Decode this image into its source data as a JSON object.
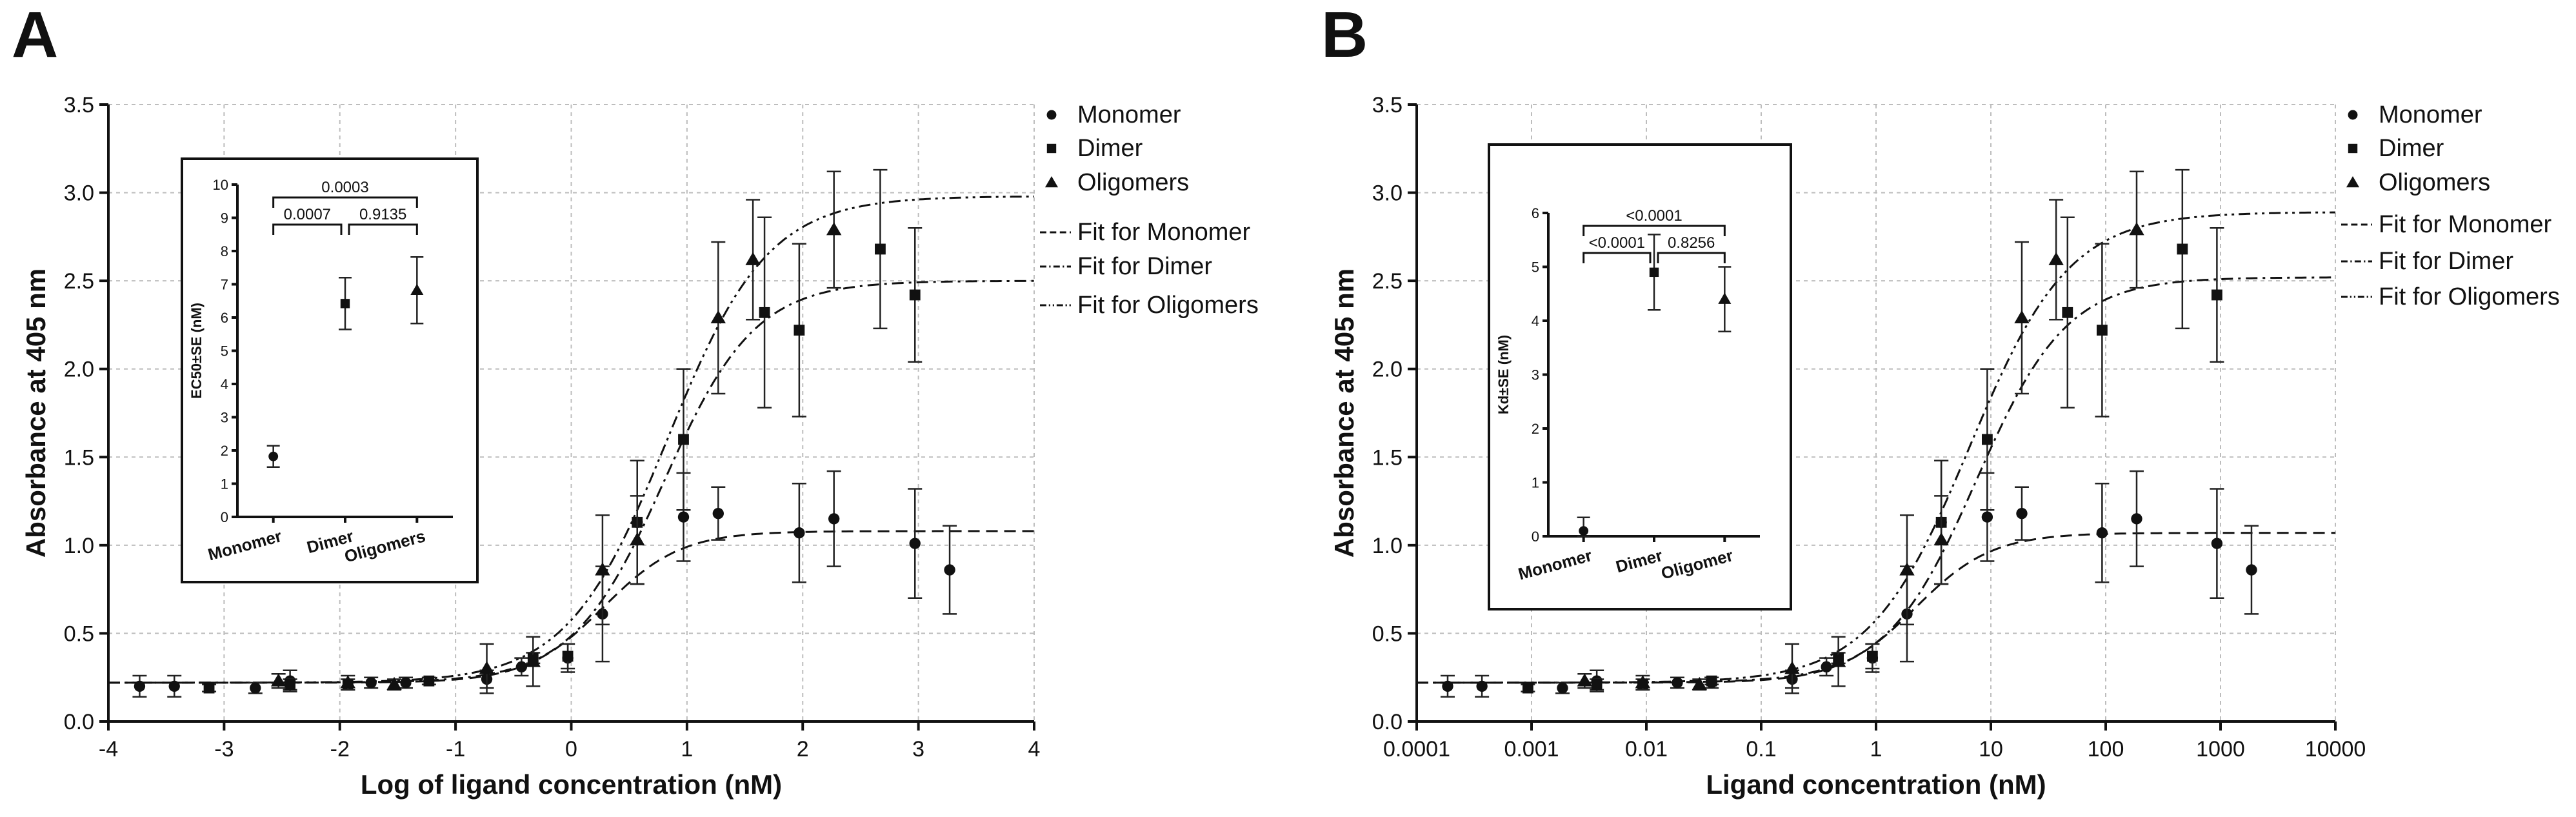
{
  "chart_data": [
    {
      "panel": "A",
      "type": "scatter",
      "xscale": "linear",
      "xlabel": "Log of ligand concentration (nM)",
      "ylabel": "Absorbance at 405 nm",
      "xlim": [
        -4,
        4
      ],
      "ylim": [
        0,
        3.5
      ],
      "xticks": [
        -4,
        -3,
        -2,
        -1,
        0,
        1,
        2,
        3,
        4
      ],
      "xtick_labels": [
        "-4",
        "-3",
        "-2",
        "-1",
        "0",
        "1",
        "2",
        "3",
        "4"
      ],
      "yticks": [
        0,
        0.5,
        1.0,
        1.5,
        2.0,
        2.5,
        3.0,
        3.5
      ],
      "ytick_labels": [
        "0.0",
        "0.5",
        "1.0",
        "1.5",
        "2.0",
        "2.5",
        "3.0",
        "3.5"
      ],
      "grid": true,
      "legend_position": "right",
      "series": [
        {
          "name": "Monomer",
          "marker": "circle",
          "points": [
            [
              -3.73,
              0.2,
              0.06
            ],
            [
              -3.43,
              0.2,
              0.06
            ],
            [
              -2.73,
              0.19,
              0.03
            ],
            [
              -2.43,
              0.23,
              0.06
            ],
            [
              -1.73,
              0.22,
              0.03
            ],
            [
              -1.43,
              0.22,
              0.03
            ],
            [
              -0.73,
              0.24,
              0.05
            ],
            [
              -0.43,
              0.31,
              0.05
            ],
            [
              -0.03,
              0.36,
              0.08
            ],
            [
              0.27,
              0.61,
              0.27
            ],
            [
              0.57,
              1.13,
              0.35
            ],
            [
              0.97,
              1.16,
              0.25
            ],
            [
              1.27,
              1.18,
              0.15
            ],
            [
              1.97,
              1.07,
              0.28
            ],
            [
              2.27,
              1.15,
              0.27
            ],
            [
              2.97,
              1.01,
              0.31
            ],
            [
              3.27,
              0.86,
              0.25
            ]
          ]
        },
        {
          "name": "Dimer",
          "marker": "square",
          "points": [
            [
              -3.13,
              0.19,
              0.02
            ],
            [
              -2.43,
              0.21,
              0.03
            ],
            [
              -1.93,
              0.21,
              0.03
            ],
            [
              -1.23,
              0.23,
              0.02
            ],
            [
              -0.33,
              0.36,
              0.03
            ],
            [
              -0.03,
              0.37,
              0.07
            ],
            [
              0.57,
              1.13,
              0.35
            ],
            [
              0.97,
              1.6,
              0.4
            ],
            [
              1.67,
              2.32,
              0.54
            ],
            [
              1.97,
              2.22,
              0.49
            ],
            [
              2.67,
              2.68,
              0.45
            ],
            [
              2.97,
              2.42,
              0.38
            ]
          ]
        },
        {
          "name": "Oligomers",
          "marker": "triangle",
          "points": [
            [
              -2.53,
              0.23,
              0.04
            ],
            [
              -1.93,
              0.22,
              0.04
            ],
            [
              -1.53,
              0.21,
              0.03
            ],
            [
              -0.73,
              0.3,
              0.14
            ],
            [
              -0.33,
              0.34,
              0.14
            ],
            [
              0.27,
              0.86,
              0.31
            ],
            [
              0.57,
              1.03,
              0.25
            ],
            [
              1.27,
              2.29,
              0.43
            ],
            [
              1.57,
              2.62,
              0.34
            ],
            [
              2.27,
              2.79,
              0.33
            ]
          ]
        }
      ],
      "fits": [
        {
          "name": "Fit for Monomer",
          "dash": "long",
          "bottom": 0.22,
          "top": 1.08,
          "logEC50": 0.28,
          "hill": 1.3
        },
        {
          "name": "Fit for Dimer",
          "dash": "dashdot",
          "bottom": 0.22,
          "top": 2.5,
          "logEC50": 0.8,
          "hill": 1.1
        },
        {
          "name": "Fit for Oligomers",
          "dash": "dashdotdot",
          "bottom": 0.22,
          "top": 2.98,
          "logEC50": 0.83,
          "hill": 1.0
        }
      ],
      "inset": {
        "ylabel": "EC50±SE (nM)",
        "ylim": [
          0,
          10
        ],
        "yticks": [
          0,
          1,
          2,
          3,
          4,
          5,
          6,
          7,
          8,
          9,
          10
        ],
        "ytick_labels": [
          "0",
          "1",
          "2",
          "3",
          "4",
          "5",
          "6",
          "7",
          "8",
          "9",
          "10"
        ],
        "categories": [
          "Monomer",
          "Dimer",
          "Oligomers"
        ],
        "values": [
          1.82,
          6.42,
          6.82
        ],
        "errors": [
          0.32,
          0.78,
          1.0
        ],
        "markers": [
          "circle",
          "square",
          "triangle"
        ],
        "comparisons": [
          {
            "from": 0,
            "to": 1,
            "label": "0.0007"
          },
          {
            "from": 1,
            "to": 2,
            "label": "0.9135"
          },
          {
            "from": 0,
            "to": 2,
            "label": "0.0003"
          }
        ]
      }
    },
    {
      "panel": "B",
      "type": "scatter",
      "xscale": "log",
      "xlabel": "Ligand concentration (nM)",
      "ylabel": "Absorbance at 405 nm",
      "xlim": [
        0.0001,
        10000
      ],
      "ylim": [
        0,
        3.5
      ],
      "xticks": [
        0.0001,
        0.001,
        0.01,
        0.1,
        1,
        10,
        100,
        1000,
        10000
      ],
      "xtick_labels": [
        "0.0001",
        "0.001",
        "0.01",
        "0.1",
        "1",
        "10",
        "100",
        "1000",
        "10000"
      ],
      "yticks": [
        0,
        0.5,
        1.0,
        1.5,
        2.0,
        2.5,
        3.0,
        3.5
      ],
      "ytick_labels": [
        "0.0",
        "0.5",
        "1.0",
        "1.5",
        "2.0",
        "2.5",
        "3.0",
        "3.5"
      ],
      "grid": true,
      "legend_position": "right",
      "series": [
        {
          "name": "Monomer",
          "marker": "circle",
          "points": [
            [
              0.000186,
              0.2,
              0.06
            ],
            [
              0.00037,
              0.2,
              0.06
            ],
            [
              0.00186,
              0.19,
              0.03
            ],
            [
              0.0037,
              0.23,
              0.06
            ],
            [
              0.0186,
              0.22,
              0.03
            ],
            [
              0.037,
              0.22,
              0.03
            ],
            [
              0.186,
              0.24,
              0.05
            ],
            [
              0.37,
              0.31,
              0.05
            ],
            [
              0.93,
              0.36,
              0.08
            ],
            [
              1.86,
              0.61,
              0.27
            ],
            [
              3.7,
              1.13,
              0.35
            ],
            [
              9.3,
              1.16,
              0.25
            ],
            [
              18.6,
              1.18,
              0.15
            ],
            [
              93,
              1.07,
              0.28
            ],
            [
              186,
              1.15,
              0.27
            ],
            [
              930,
              1.01,
              0.31
            ],
            [
              1860,
              0.86,
              0.25
            ]
          ]
        },
        {
          "name": "Dimer",
          "marker": "square",
          "points": [
            [
              0.00093,
              0.19,
              0.02
            ],
            [
              0.0037,
              0.21,
              0.03
            ],
            [
              0.0093,
              0.21,
              0.03
            ],
            [
              0.037,
              0.23,
              0.02
            ],
            [
              0.47,
              0.36,
              0.03
            ],
            [
              0.93,
              0.37,
              0.07
            ],
            [
              3.7,
              1.13,
              0.35
            ],
            [
              9.3,
              1.6,
              0.4
            ],
            [
              46.5,
              2.32,
              0.54
            ],
            [
              93,
              2.22,
              0.49
            ],
            [
              465,
              2.68,
              0.45
            ],
            [
              930,
              2.42,
              0.38
            ]
          ]
        },
        {
          "name": "Oligomers",
          "marker": "triangle",
          "points": [
            [
              0.0029,
              0.23,
              0.04
            ],
            [
              0.0093,
              0.22,
              0.04
            ],
            [
              0.029,
              0.21,
              0.03
            ],
            [
              0.186,
              0.3,
              0.14
            ],
            [
              0.47,
              0.34,
              0.14
            ],
            [
              1.86,
              0.86,
              0.31
            ],
            [
              3.7,
              1.03,
              0.25
            ],
            [
              18.6,
              2.29,
              0.43
            ],
            [
              37,
              2.62,
              0.34
            ],
            [
              186,
              2.79,
              0.33
            ]
          ]
        }
      ],
      "fits": [
        {
          "name": "Fit for Monomer",
          "dash": "long",
          "bottom": 0.22,
          "top": 1.07,
          "kd": 2.2,
          "hill": 1.3
        },
        {
          "name": "Fit for Dimer",
          "dash": "dashdot",
          "bottom": 0.22,
          "top": 2.52,
          "kd": 7.5,
          "hill": 1.1
        },
        {
          "name": "Fit for Oligomers",
          "dash": "dashdotdot",
          "bottom": 0.22,
          "top": 2.89,
          "kd": 6.5,
          "hill": 1.0
        }
      ],
      "inset": {
        "ylabel": "Kd±SE (nM)",
        "ylim": [
          0,
          6
        ],
        "yticks": [
          0,
          1,
          2,
          3,
          4,
          5,
          6
        ],
        "ytick_labels": [
          "0",
          "1",
          "2",
          "3",
          "4",
          "5",
          "6"
        ],
        "categories": [
          "Monomer",
          "Dimer",
          "Oligomer"
        ],
        "values": [
          0.1,
          4.9,
          4.4
        ],
        "errors": [
          0.25,
          0.7,
          0.6
        ],
        "markers": [
          "circle",
          "square",
          "triangle"
        ],
        "comparisons": [
          {
            "from": 0,
            "to": 1,
            "label": "<0.0001"
          },
          {
            "from": 1,
            "to": 2,
            "label": "0.8256"
          },
          {
            "from": 0,
            "to": 2,
            "label": "<0.0001"
          }
        ]
      }
    }
  ]
}
